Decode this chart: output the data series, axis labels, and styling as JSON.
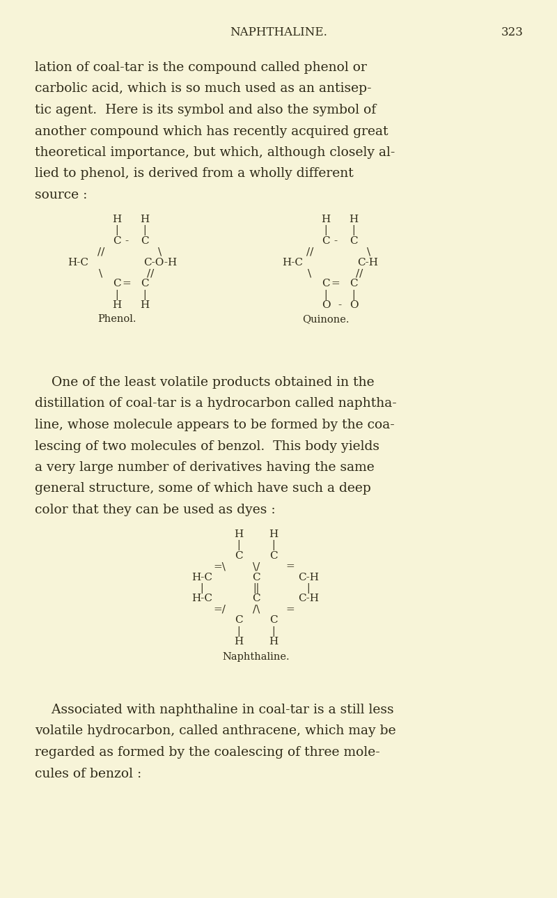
{
  "bg_color": "#f7f4d8",
  "text_color": "#2e2a18",
  "page_width": 8.0,
  "page_height": 12.89,
  "header_title": "NAPHTHALINE.",
  "header_page": "323",
  "para1_lines": [
    "lation of coal-tar is the compound called phenol or",
    "carbolic acid, which is so much used as an antisep-",
    "tic agent.  Here is its symbol and also the symbol of",
    "another compound which has recently acquired great",
    "theoretical importance, but which, although closely al-",
    "lied to phenol, is derived from a wholly different",
    "source :"
  ],
  "para2_lines": [
    "    One of the least volatile products obtained in the",
    "distillation of coal-tar is a hydrocarbon called naphtha-",
    "line, whose molecule appears to be formed by the coa-",
    "lescing of two molecules of benzol.  This body yields",
    "a very large number of derivatives having the same",
    "general structure, some of which have such a deep",
    "color that they can be used as dyes :"
  ],
  "para3_lines": [
    "    Associated with naphthaline in coal-tar is a still less",
    "volatile hydrocarbon, called anthracene, which may be",
    "regarded as formed by the coalescing of three mole-",
    "cules of benzol :"
  ]
}
